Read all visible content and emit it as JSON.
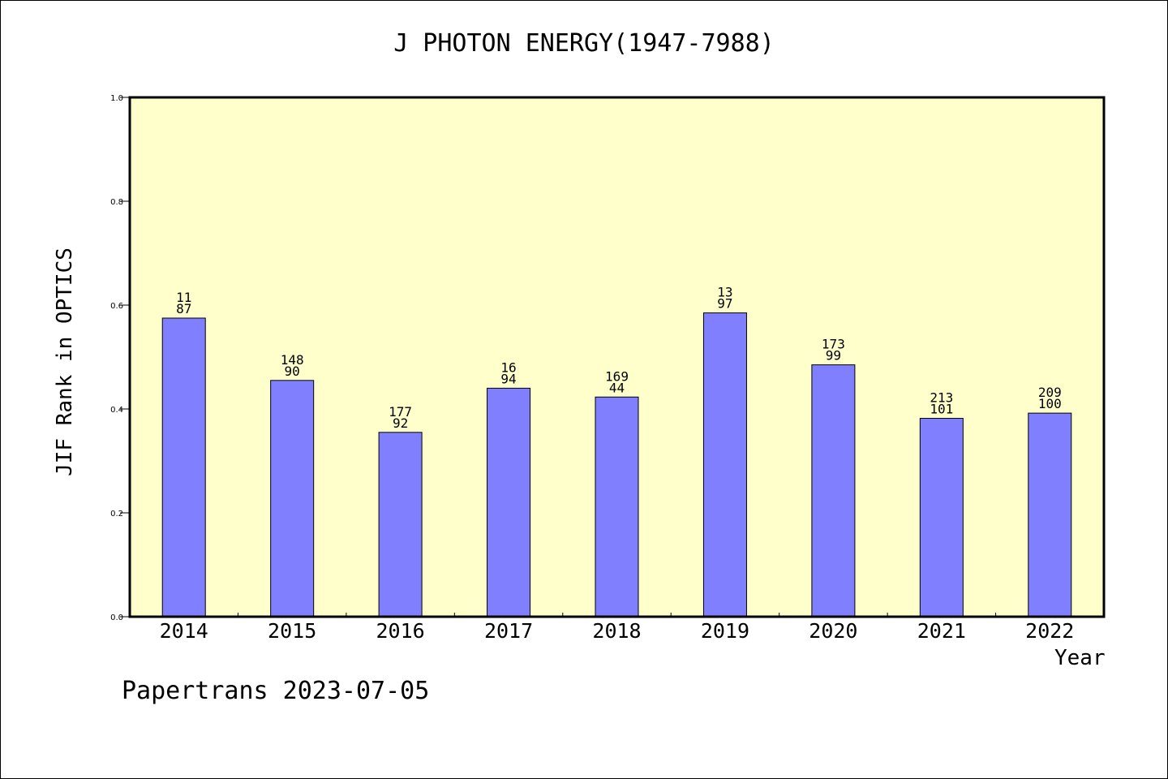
{
  "colors": {
    "plot_background": "#ffffcc",
    "bar_fill": "#8080ff",
    "bar_stroke": "#000000",
    "axis": "#000000"
  },
  "chart_data": {
    "type": "bar",
    "title": "J PHOTON ENERGY(1947-7988)",
    "xlabel": "Year",
    "ylabel": "JIF Rank in OPTICS",
    "ylim": [
      0,
      1.0
    ],
    "yticks": [
      "0.0",
      "0.2",
      "0.4",
      "0.6",
      "0.8",
      "1.0"
    ],
    "grid": false,
    "categories": [
      "2014",
      "2015",
      "2016",
      "2017",
      "2018",
      "2019",
      "2020",
      "2021",
      "2022"
    ],
    "values": [
      0.575,
      0.455,
      0.355,
      0.44,
      0.423,
      0.585,
      0.485,
      0.382,
      0.392
    ],
    "bar_labels_top": [
      "11",
      "148",
      "177",
      "16",
      "169",
      "13",
      "173",
      "213",
      "209"
    ],
    "bar_labels_bottom": [
      "87",
      "90",
      "92",
      "94",
      "44",
      "97",
      "99",
      "101",
      "100"
    ]
  },
  "footer": {
    "text": "Papertrans 2023-07-05"
  }
}
